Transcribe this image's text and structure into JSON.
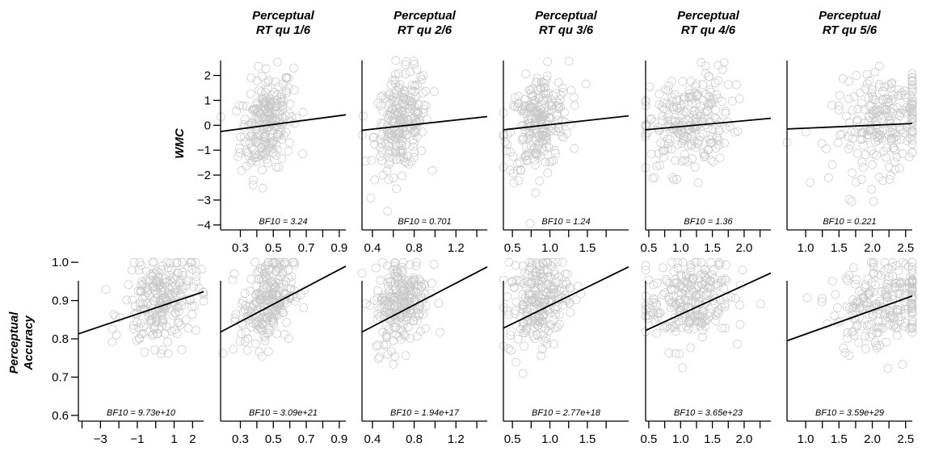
{
  "chart_data": {
    "type": "scatter",
    "column_titles": [
      [
        "Perceptual",
        "RT qu 1/6"
      ],
      [
        "Perceptual",
        "RT qu 2/6"
      ],
      [
        "Perceptual",
        "RT qu 3/6"
      ],
      [
        "Perceptual",
        "RT qu 4/6"
      ],
      [
        "Perceptual",
        "RT qu 5/6"
      ]
    ],
    "row_labels": [
      [
        "WMC"
      ],
      [
        "Perceptual",
        "Accuracy"
      ]
    ],
    "rows": [
      {
        "ylabel": "WMC",
        "ylim": [
          -4.2,
          2.6
        ],
        "yticks": [
          2,
          1,
          0,
          -1,
          -2,
          -3,
          -4
        ],
        "ytick_labels": [
          "2",
          "1",
          "0",
          "−1",
          "−2",
          "−3",
          "−4"
        ],
        "panels": [
          {
            "x_title": "Perceptual RT qu 1/6",
            "xlim": [
              0.18,
              0.94
            ],
            "xticks": [
              0.3,
              0.5,
              0.7,
              0.9
            ],
            "xtick_labels": [
              "0.3",
              "0.5",
              "0.7",
              "0.9"
            ],
            "xminor": [
              0.4,
              0.6,
              0.8
            ],
            "cloud": {
              "cx": 0.46,
              "sx": 0.08,
              "cy": 0.1,
              "sy": 1.0
            },
            "fit_line": {
              "x": [
                0.18,
                0.94
              ],
              "y": [
                -0.25,
                0.42
              ]
            },
            "bf10": "BF10 = 3.24"
          },
          {
            "x_title": "Perceptual RT qu 2/6",
            "xlim": [
              0.3,
              1.5
            ],
            "xticks": [
              0.4,
              0.8,
              1.2
            ],
            "xtick_labels": [
              "0.4",
              "0.8",
              "1.2"
            ],
            "xminor": [
              0.6,
              1.0,
              1.4
            ],
            "cloud": {
              "cx": 0.68,
              "sx": 0.13,
              "cy": 0.1,
              "sy": 1.0
            },
            "fit_line": {
              "x": [
                0.3,
                1.5
              ],
              "y": [
                -0.2,
                0.35
              ]
            },
            "bf10": "BF10 = 0.701"
          },
          {
            "x_title": "Perceptual RT qu 3/6",
            "xlim": [
              0.38,
              2.05
            ],
            "xticks": [
              0.5,
              1.0,
              1.5
            ],
            "xtick_labels": [
              "0.5",
              "1.0",
              "1.5"
            ],
            "xminor": [
              0.75,
              1.25,
              1.75
            ],
            "cloud": {
              "cx": 0.85,
              "sx": 0.2,
              "cy": 0.1,
              "sy": 1.0
            },
            "fit_line": {
              "x": [
                0.38,
                2.05
              ],
              "y": [
                -0.18,
                0.38
              ]
            },
            "bf10": "BF10 = 1.24"
          },
          {
            "x_title": "Perceptual RT qu 4/6",
            "xlim": [
              0.45,
              2.42
            ],
            "xticks": [
              0.5,
              1.0,
              1.5,
              2.0
            ],
            "xtick_labels": [
              "0.5",
              "1.0",
              "1.5",
              "2.0"
            ],
            "xminor": [
              0.75,
              1.25,
              1.75,
              2.25
            ],
            "cloud": {
              "cx": 1.1,
              "sx": 0.35,
              "cy": 0.1,
              "sy": 1.0
            },
            "fit_line": {
              "x": [
                0.45,
                2.42
              ],
              "y": [
                -0.18,
                0.28
              ]
            },
            "bf10": "BF10 = 1.36"
          },
          {
            "x_title": "Perceptual RT qu 5/6",
            "xlim": [
              0.72,
              2.6
            ],
            "xticks": [
              1.0,
              1.5,
              2.0,
              2.5
            ],
            "xtick_labels": [
              "1.0",
              "1.5",
              "2.0",
              "2.5"
            ],
            "xminor": [
              1.25,
              1.75,
              2.25
            ],
            "cloud": {
              "cx": 2.2,
              "sx": 0.4,
              "cy": 0.1,
              "sy": 1.0
            },
            "fit_line": {
              "x": [
                0.72,
                2.6
              ],
              "y": [
                -0.15,
                0.07
              ]
            },
            "bf10": "BF10 = 0.221"
          }
        ]
      },
      {
        "ylabel": "Perceptual Accuracy",
        "ylim": [
          0.585,
          1.015
        ],
        "yticks": [
          1.0,
          0.9,
          0.8,
          0.7,
          0.6
        ],
        "ytick_labels": [
          "1.0",
          "0.9",
          "0.8",
          "0.7",
          "0.6"
        ],
        "panels": [
          {
            "x_title": "WMC",
            "xlim": [
              -4.2,
              2.6
            ],
            "xticks": [
              -3,
              -1,
              1,
              2
            ],
            "xtick_labels": [
              "−3",
              "−1",
              "1",
              "2"
            ],
            "xminor": [
              -4,
              -2,
              0
            ],
            "cloud": {
              "cx": 0.3,
              "sx": 1.0,
              "cy": 0.9,
              "sy": 0.06
            },
            "fit_line": {
              "x": [
                -4.2,
                2.6
              ],
              "y": [
                0.813,
                0.923
              ]
            },
            "bf10": "BF10 = 9.73e+10"
          },
          {
            "x_title": "Perceptual RT qu 1/6",
            "xlim": [
              0.18,
              0.94
            ],
            "xticks": [
              0.3,
              0.5,
              0.7,
              0.9
            ],
            "xtick_labels": [
              "0.3",
              "0.5",
              "0.7",
              "0.9"
            ],
            "xminor": [
              0.4,
              0.6,
              0.8
            ],
            "cloud": {
              "cx": 0.46,
              "sx": 0.08,
              "cy": 0.9,
              "sy": 0.06
            },
            "fit_line": {
              "x": [
                0.18,
                0.94
              ],
              "y": [
                0.818,
                0.99
              ]
            },
            "bf10": "BF10 = 3.09e+21"
          },
          {
            "x_title": "Perceptual RT qu 2/6",
            "xlim": [
              0.3,
              1.5
            ],
            "xticks": [
              0.4,
              0.8,
              1.2
            ],
            "xtick_labels": [
              "0.4",
              "0.8",
              "1.2"
            ],
            "xminor": [
              0.6,
              1.0,
              1.4
            ],
            "cloud": {
              "cx": 0.68,
              "sx": 0.13,
              "cy": 0.9,
              "sy": 0.06
            },
            "fit_line": {
              "x": [
                0.3,
                1.5
              ],
              "y": [
                0.818,
                0.988
              ]
            },
            "bf10": "BF10 = 1.94e+17"
          },
          {
            "x_title": "Perceptual RT qu 3/6",
            "xlim": [
              0.38,
              2.05
            ],
            "xticks": [
              0.5,
              1.0,
              1.5
            ],
            "xtick_labels": [
              "0.5",
              "1.0",
              "1.5"
            ],
            "xminor": [
              0.75,
              1.25,
              1.75
            ],
            "cloud": {
              "cx": 0.85,
              "sx": 0.2,
              "cy": 0.9,
              "sy": 0.06
            },
            "fit_line": {
              "x": [
                0.38,
                2.05
              ],
              "y": [
                0.828,
                0.988
              ]
            },
            "bf10": "BF10 = 2.77e+18"
          },
          {
            "x_title": "Perceptual RT qu 4/6",
            "xlim": [
              0.45,
              2.42
            ],
            "xticks": [
              0.5,
              1.0,
              1.5,
              2.0
            ],
            "xtick_labels": [
              "0.5",
              "1.0",
              "1.5",
              "2.0"
            ],
            "xminor": [
              0.75,
              1.25,
              1.75,
              2.25
            ],
            "cloud": {
              "cx": 1.1,
              "sx": 0.35,
              "cy": 0.9,
              "sy": 0.06
            },
            "fit_line": {
              "x": [
                0.45,
                2.42
              ],
              "y": [
                0.822,
                0.972
              ]
            },
            "bf10": "BF10 = 3.65e+23"
          },
          {
            "x_title": "Perceptual RT qu 5/6",
            "xlim": [
              0.72,
              2.6
            ],
            "xticks": [
              1.0,
              1.5,
              2.0,
              2.5
            ],
            "xtick_labels": [
              "1.0",
              "1.5",
              "2.0",
              "2.5"
            ],
            "xminor": [
              1.25,
              1.75,
              2.25
            ],
            "cloud": {
              "cx": 2.2,
              "sx": 0.4,
              "cy": 0.9,
              "sy": 0.06
            },
            "fit_line": {
              "x": [
                0.72,
                2.6
              ],
              "y": [
                0.795,
                0.912
              ]
            },
            "bf10": "BF10 = 3.59e+29"
          }
        ]
      }
    ],
    "grid": false,
    "legend": "none"
  }
}
